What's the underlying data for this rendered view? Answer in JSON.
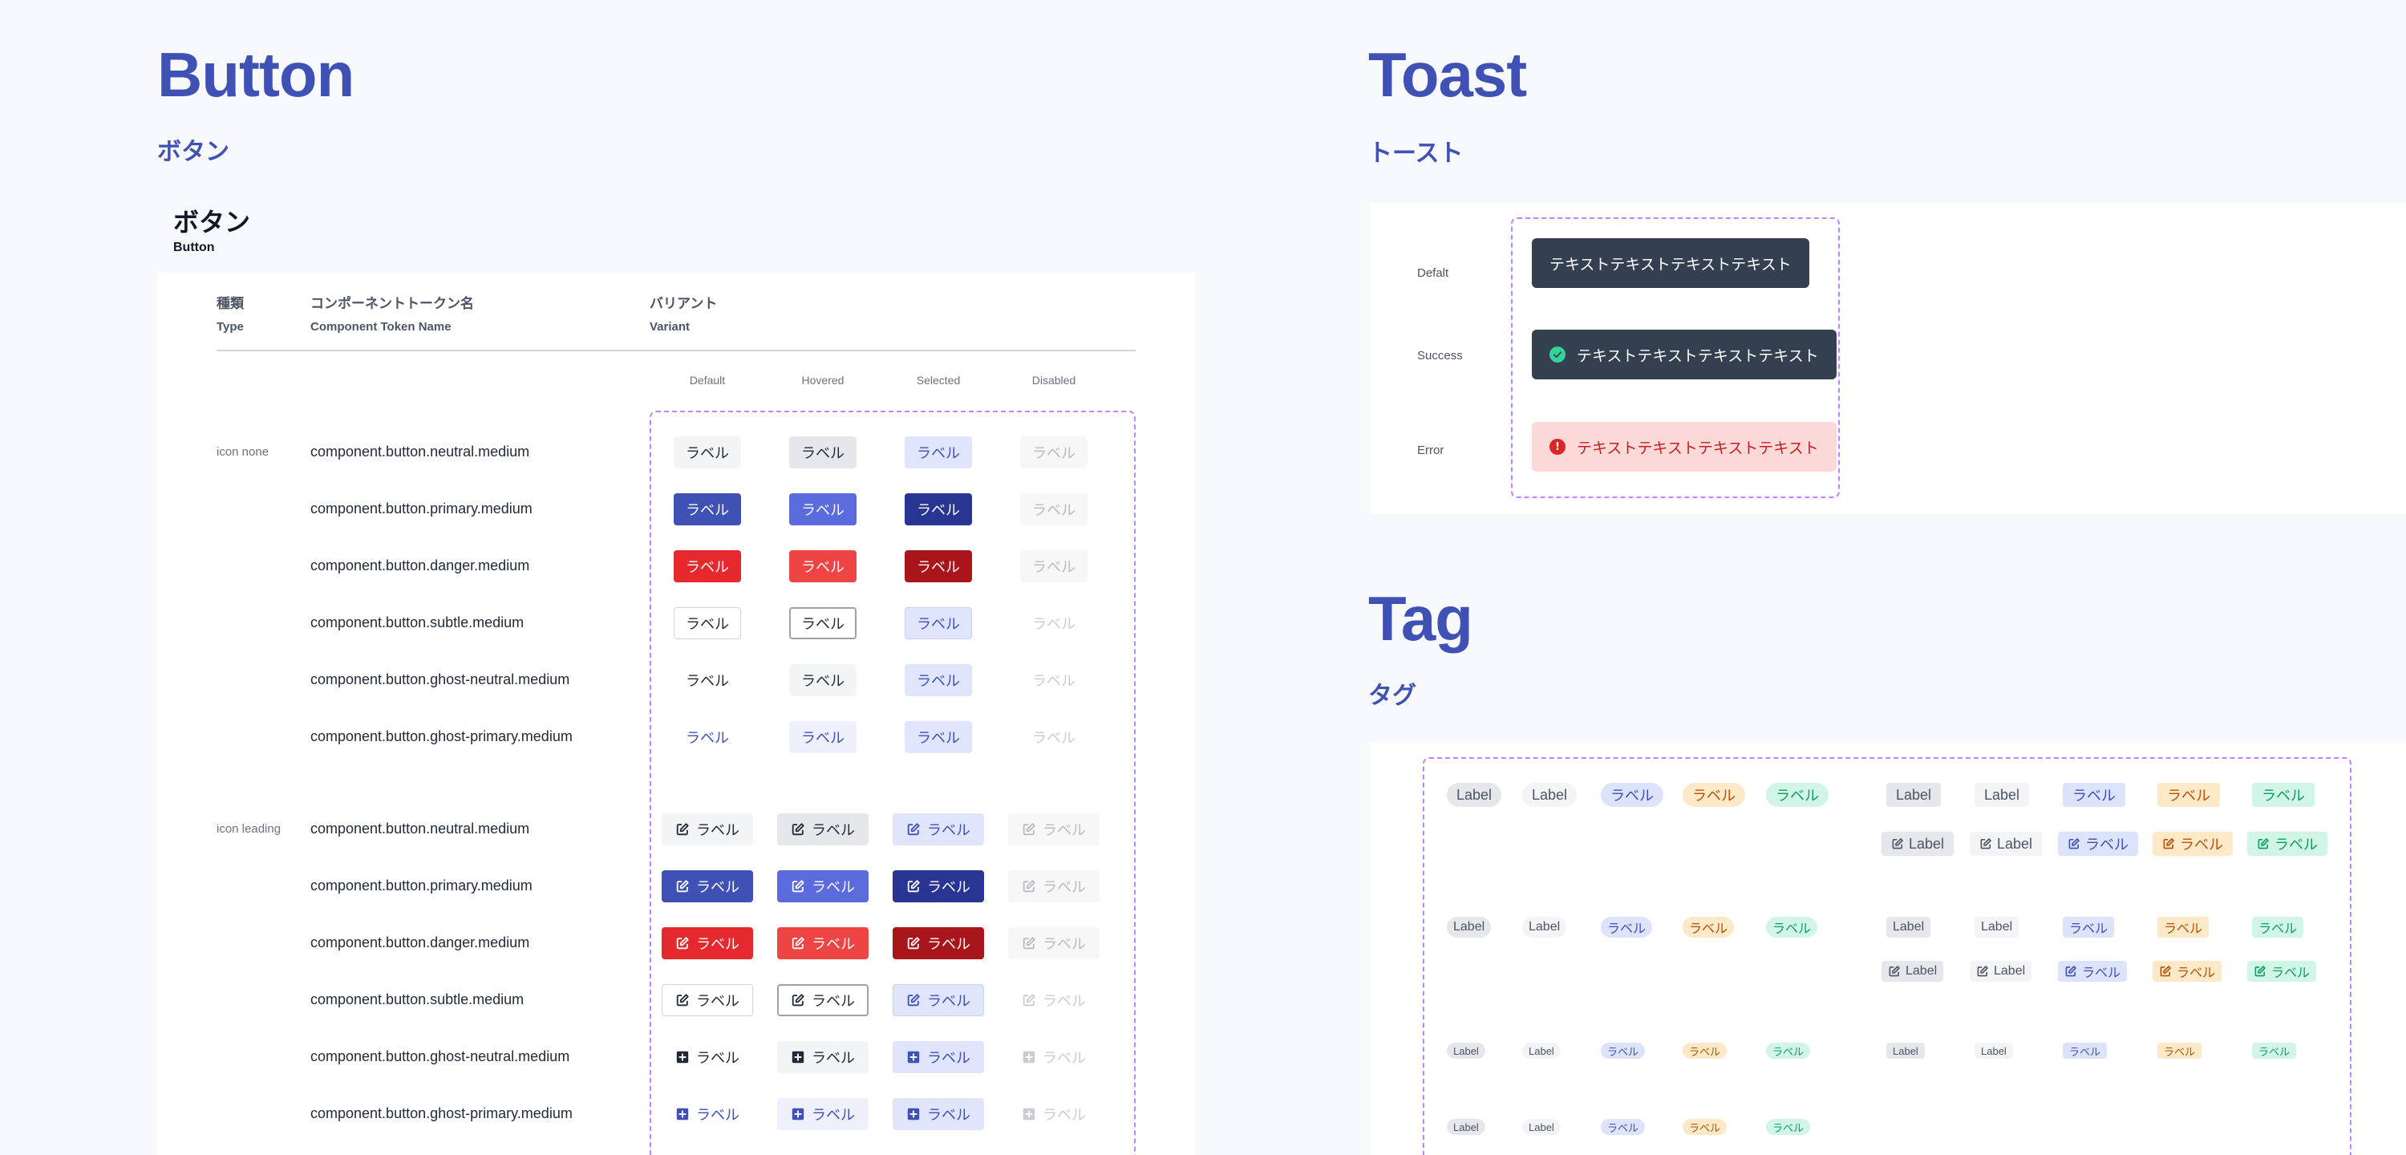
{
  "button": {
    "heading": "Button",
    "heading_ja": "ボタン",
    "card_title": "ボタン",
    "card_subtitle": "Button",
    "columns": {
      "type_ja": "種類",
      "type_en": "Type",
      "token_ja": "コンポーネントトークン名",
      "token_en": "Component Token Name",
      "variant_ja": "バリアント",
      "variant_en": "Variant"
    },
    "states": [
      "Default",
      "Hovered",
      "Selected",
      "Disabled"
    ],
    "label": "ラベル",
    "groups": [
      {
        "type": "icon none",
        "icon": "none",
        "rows": [
          {
            "token": "component.button.neutral.medium"
          },
          {
            "token": "component.button.primary.medium"
          },
          {
            "token": "component.button.danger.medium"
          },
          {
            "token": "component.button.subtle.medium"
          },
          {
            "token": "component.button.ghost-neutral.medium"
          },
          {
            "token": "component.button.ghost-primary.medium"
          }
        ]
      },
      {
        "type": "icon leading",
        "icon": "edit-icon",
        "rows": [
          {
            "token": "component.button.neutral.medium"
          },
          {
            "token": "component.button.primary.medium"
          },
          {
            "token": "component.button.danger.medium"
          },
          {
            "token": "component.button.subtle.medium"
          },
          {
            "token": "component.button.ghost-neutral.medium",
            "icon": "plus-square-icon"
          },
          {
            "token": "component.button.ghost-primary.medium",
            "icon": "plus-square-icon"
          }
        ]
      }
    ]
  },
  "toast": {
    "heading": "Toast",
    "heading_ja": "トースト",
    "items": [
      {
        "label": "Defalt",
        "text": "テキストテキストテキストテキスト",
        "icon": "none"
      },
      {
        "label": "Success",
        "text": "テキストテキストテキストテキスト",
        "icon": "check-circle-icon"
      },
      {
        "label": "Error",
        "text": "テキストテキストテキストテキスト",
        "icon": "alert-circle-icon"
      }
    ]
  },
  "tag": {
    "heading": "Tag",
    "heading_ja": "タグ",
    "label_en": "Label",
    "label_ja": "ラベル"
  },
  "colors": {
    "brand": "#3f51b5",
    "danger": "#e5292f",
    "dashed_frame": "#c084fc",
    "toast_dark": "#344050",
    "toast_error_bg": "#fcd9d9"
  }
}
